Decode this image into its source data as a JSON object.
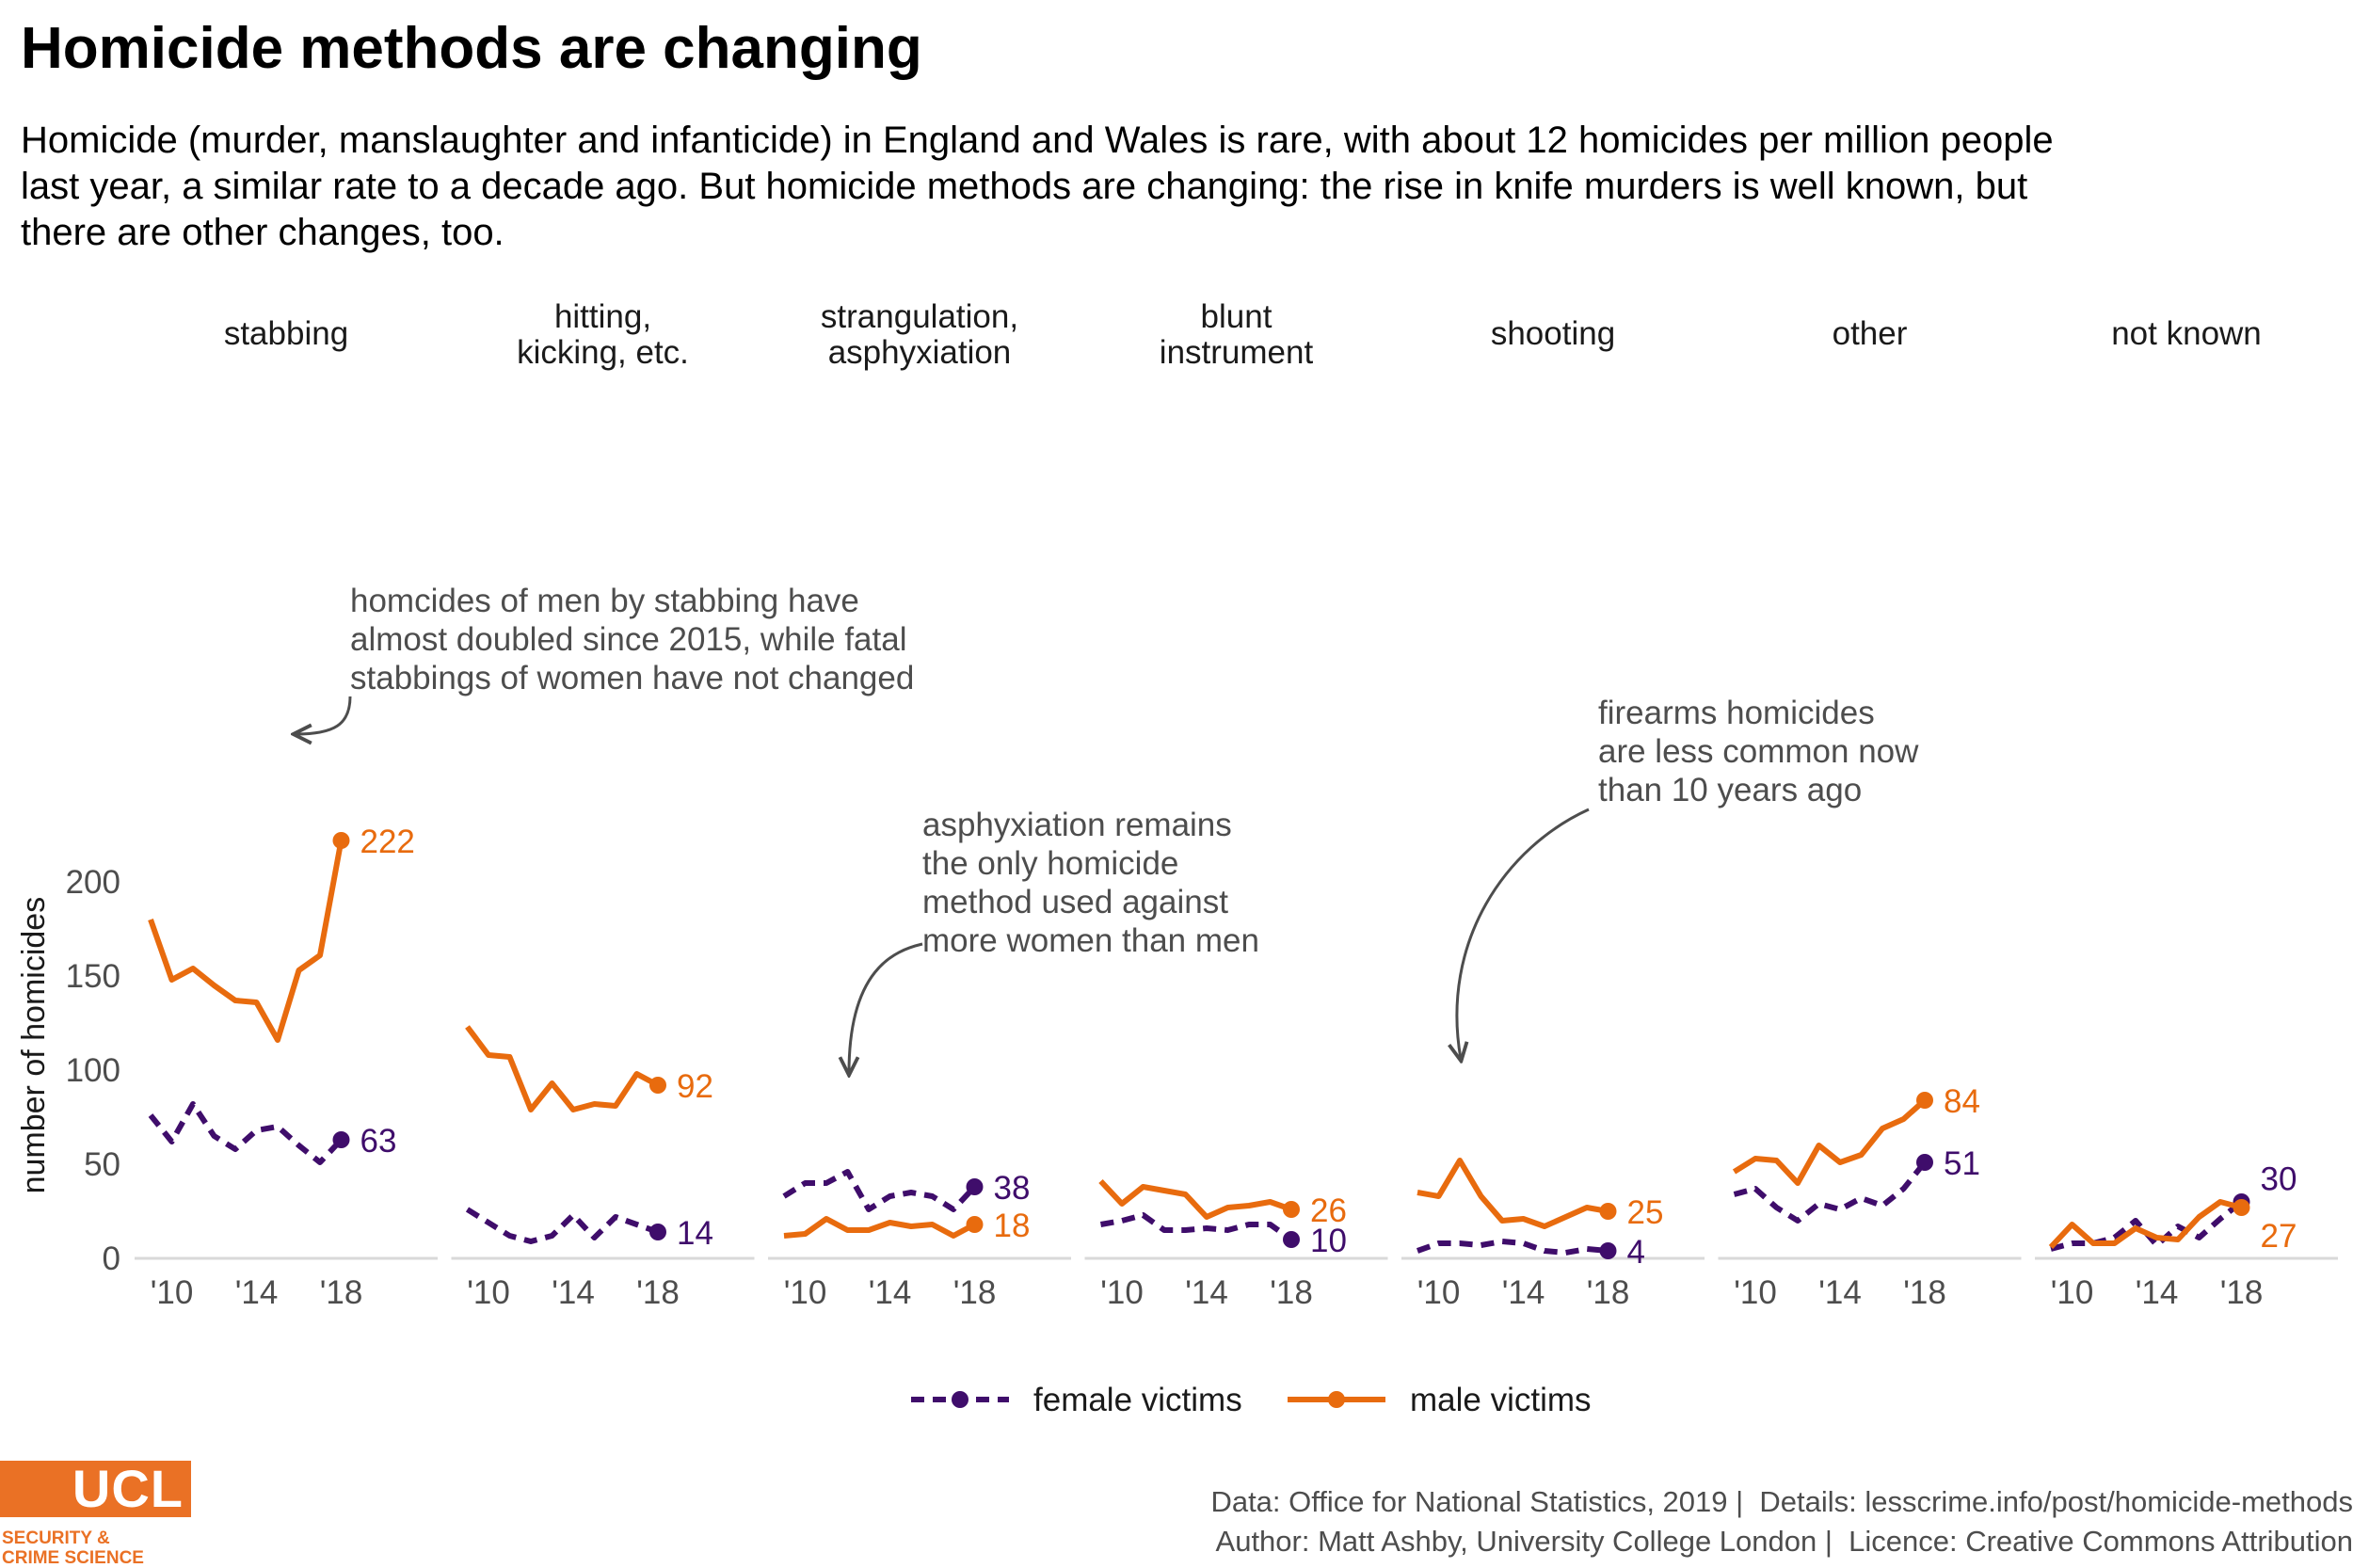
{
  "title": "Homicide methods are changing",
  "subtitle": "Homicide (murder, manslaughter and infanticide) in England and Wales is rare, with about 12 homicides per million people last year, a similar rate to a decade ago. But homicide methods are changing: the rise in knife murders is well known, but there are other changes, too.",
  "caption": {
    "line1": "Data: Office for National Statistics, 2019 |  Details: lesscrime.info/post/homicide-methods",
    "line2": "Author: Matt Ashby, University College London |  Licence: Creative Commons Attribution"
  },
  "logo": {
    "text": "UCL",
    "sub_line1": "SECURITY &",
    "sub_line2": "CRIME SCIENCE"
  },
  "colors": {
    "female": "#3f0d6b",
    "male": "#e86b0e",
    "annotation": "#4d4d4d",
    "axis": "#d9d9d9"
  },
  "chart_data": {
    "type": "line",
    "ylabel": "number of homicides",
    "ylim": [
      0,
      222
    ],
    "yticks": [
      0,
      50,
      100,
      150,
      200
    ],
    "x_years": [
      2009,
      2010,
      2011,
      2012,
      2013,
      2014,
      2015,
      2016,
      2017,
      2018
    ],
    "xticks": [
      2010,
      2014,
      2018
    ],
    "xtick_labels": [
      "'10",
      "'14",
      "'18"
    ],
    "grid": false,
    "legend": {
      "position": "bottom",
      "entries": [
        {
          "key": "female",
          "label": "female victims",
          "style": "dashed"
        },
        {
          "key": "male",
          "label": "male victims",
          "style": "solid"
        }
      ]
    },
    "panels": [
      {
        "label": "stabbing",
        "female": [
          76,
          62,
          82,
          65,
          58,
          68,
          70,
          60,
          51,
          63
        ],
        "male": [
          180,
          148,
          154,
          145,
          137,
          136,
          116,
          153,
          161,
          222
        ]
      },
      {
        "label": "hitting,\nkicking, etc.",
        "female": [
          26,
          19,
          12,
          9,
          12,
          23,
          11,
          22,
          18,
          14
        ],
        "male": [
          123,
          108,
          107,
          79,
          93,
          79,
          82,
          81,
          98,
          92
        ]
      },
      {
        "label": "strangulation,\nasphyxiation",
        "female": [
          33,
          40,
          40,
          46,
          26,
          33,
          35,
          33,
          26,
          38
        ],
        "male": [
          12,
          13,
          21,
          15,
          15,
          19,
          17,
          18,
          12,
          18
        ]
      },
      {
        "label": "blunt\ninstrument",
        "female": [
          18,
          20,
          23,
          15,
          15,
          16,
          15,
          18,
          18,
          10
        ],
        "male": [
          41,
          29,
          38,
          36,
          34,
          22,
          27,
          28,
          30,
          26
        ]
      },
      {
        "label": "shooting",
        "female": [
          4,
          8,
          8,
          7,
          9,
          8,
          4,
          3,
          5,
          4
        ],
        "male": [
          35,
          33,
          52,
          33,
          20,
          21,
          17,
          22,
          27,
          25
        ]
      },
      {
        "label": "other",
        "female": [
          34,
          37,
          27,
          20,
          29,
          26,
          32,
          28,
          37,
          51
        ],
        "male": [
          46,
          53,
          52,
          40,
          60,
          51,
          55,
          69,
          74,
          84
        ]
      },
      {
        "label": "not known",
        "female": [
          5,
          8,
          8,
          11,
          20,
          7,
          17,
          11,
          21,
          30
        ],
        "male": [
          6,
          18,
          8,
          8,
          16,
          11,
          10,
          22,
          30,
          27
        ]
      }
    ],
    "end_labels": [
      {
        "panel": 0,
        "male": "222",
        "female": "63"
      },
      {
        "panel": 1,
        "male": "92",
        "female": "14"
      },
      {
        "panel": 2,
        "male": "18",
        "female": "38"
      },
      {
        "panel": 3,
        "male": "26",
        "female": "10"
      },
      {
        "panel": 4,
        "male": "25",
        "female": "4"
      },
      {
        "panel": 5,
        "male": "84",
        "female": "51"
      },
      {
        "panel": 6,
        "male": "27",
        "female": "30"
      }
    ],
    "annotations": [
      {
        "panel": 0,
        "lines": [
          "homcides of men by stabbing have",
          "almost doubled since 2015, while fatal",
          "stabbings of women have not changed"
        ]
      },
      {
        "panel": 2,
        "lines": [
          "asphyxiation remains",
          "the only homicide",
          "method used against",
          "more women than men"
        ]
      },
      {
        "panel": 4,
        "lines": [
          "firearms homicides",
          "are less common now",
          "than 10 years ago"
        ]
      }
    ]
  }
}
